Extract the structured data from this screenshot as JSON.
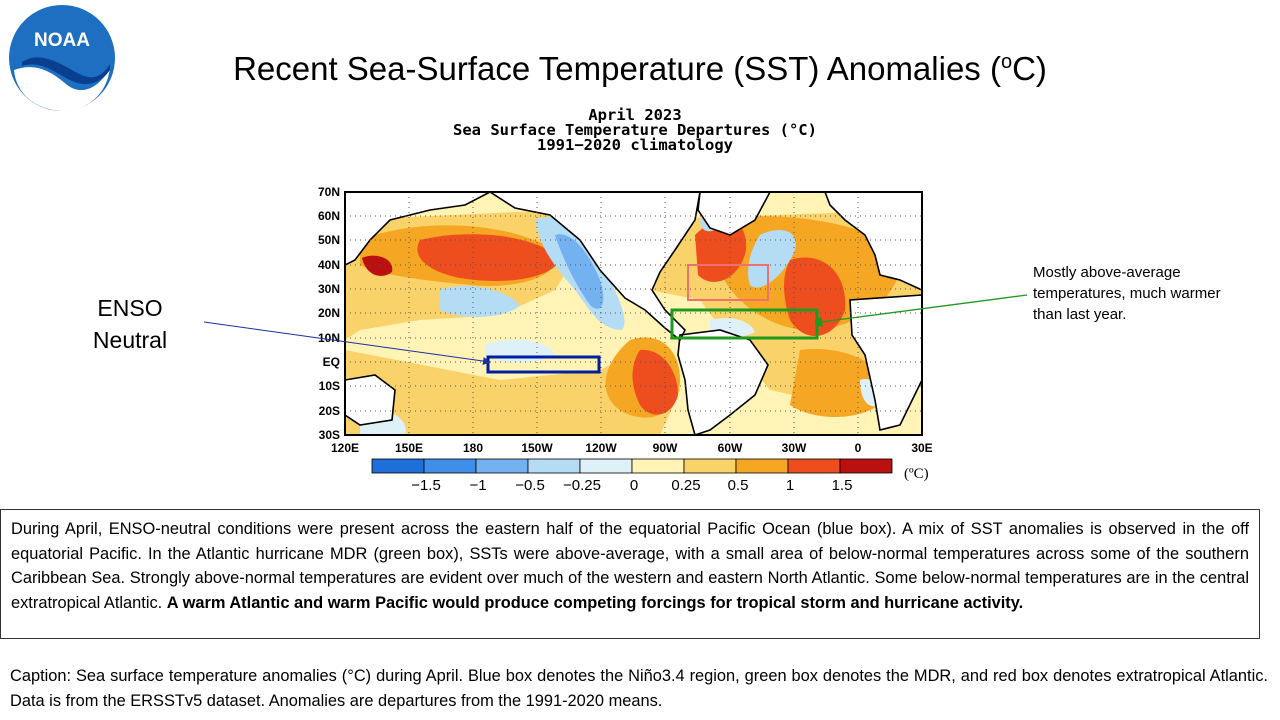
{
  "header": {
    "title_prefix": "Recent Sea-Surface Temperature (SST) Anomalies (",
    "title_sup": "o",
    "title_suffix": "C)",
    "logo_text": "NOAA"
  },
  "map": {
    "title_line1": "April 2023",
    "title_line2": "Sea Surface Temperature Departures (°C)",
    "title_line3": "1991−2020 climatology",
    "lat_labels": [
      "70N",
      "60N",
      "50N",
      "40N",
      "30N",
      "20N",
      "10N",
      "EQ",
      "10S",
      "20S",
      "30S"
    ],
    "lon_labels": [
      "120E",
      "150E",
      "180",
      "150W",
      "120W",
      "90W",
      "60W",
      "30W",
      "0",
      "30E"
    ],
    "colorbar": {
      "colors": [
        "#1f6fd8",
        "#3f8ee8",
        "#74b1f0",
        "#b5dcf5",
        "#dff1f8",
        "#fff4b6",
        "#f9d269",
        "#f5a623",
        "#ee4e1e",
        "#bb1010"
      ],
      "labels": [
        "−1.5",
        "−1",
        "−0.5",
        "−0.25",
        "0",
        "0.25",
        "0.5",
        "1",
        "1.5"
      ],
      "unit": "(ºC)"
    },
    "boxes": [
      {
        "name": "nino34",
        "color": "#001fa0"
      },
      {
        "name": "mdr",
        "color": "#1f9a1f"
      },
      {
        "name": "extratropical-atlantic",
        "color": "#f07070"
      }
    ]
  },
  "annotations": {
    "enso_line1": "ENSO",
    "enso_line2": "Neutral",
    "atlantic_note": "Mostly above-average temperatures, much warmer than last year."
  },
  "summary": {
    "text": "During April, ENSO-neutral conditions were present across the eastern half of the equatorial Pacific Ocean (blue box). A mix of SST anomalies is observed in the off equatorial Pacific. In the Atlantic hurricane MDR (green box), SSTs were above-average, with a small area of below-normal temperatures across some of the southern Caribbean Sea. Strongly above-normal temperatures are evident over much of the western and eastern North Atlantic. Some below-normal temperatures are in the central extratropical Atlantic. ",
    "bold_text": "A warm Atlantic and warm Pacific would produce competing forcings for tropical storm and hurricane activity."
  },
  "caption": "Caption: Sea surface temperature anomalies (°C) during April. Blue box denotes the Niño3.4 region, green box denotes the MDR, and red box denotes extratropical Atlantic. Data is from the ERSSTv5 dataset. Anomalies are departures from the 1991-2020 means."
}
